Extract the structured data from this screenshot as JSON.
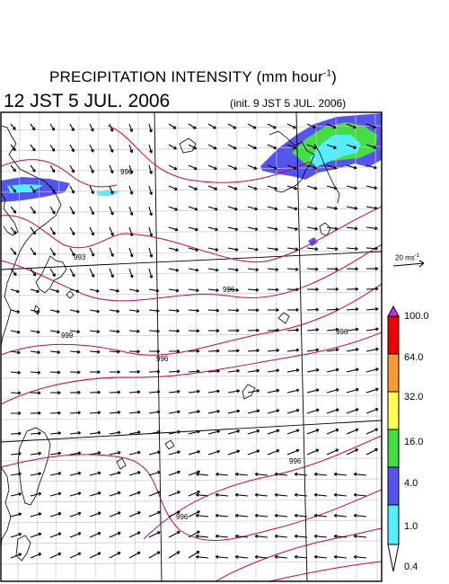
{
  "header": {
    "title": "PRECIPITATION INTENSITY (mm hour",
    "title_exp": "-1",
    "title_close": ")",
    "valid_time": "12 JST 5 JUL. 2006",
    "init_time": "(init. 9 JST 5 JUL. 2006)"
  },
  "wind_reference": {
    "label": "20 ms",
    "label_exp": "-1"
  },
  "colorbar": {
    "levels": [
      "100.0",
      "64.0",
      "32.0",
      "16.0",
      "4.0",
      "1.0",
      "0.4"
    ],
    "colors": [
      "#ee0000",
      "#ff9933",
      "#ffff55",
      "#44dd44",
      "#5555ee",
      "#55eeff"
    ],
    "overflow_color": "#bb33ff"
  },
  "isobars": {
    "labels": [
      "996",
      "993",
      "996",
      "999",
      "996",
      "996",
      "996",
      "996"
    ],
    "color": "#cc0055"
  },
  "precip_colors": {
    "light": "#55eeff",
    "moderate": "#5555ee",
    "heavy": "#44dd44",
    "land": "#ffffff"
  }
}
